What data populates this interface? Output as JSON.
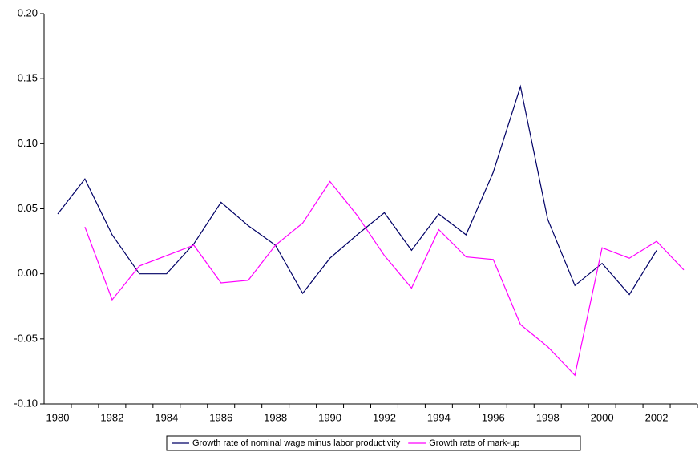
{
  "chart_data": {
    "type": "line",
    "categories": [
      "1980",
      null,
      "1982",
      null,
      "1984",
      null,
      "1986",
      null,
      "1988",
      null,
      "1990",
      null,
      "1992",
      null,
      "1994",
      null,
      "1996",
      null,
      "1998",
      null,
      "2000",
      null,
      "2002",
      null
    ],
    "series": [
      {
        "name": "Growth rate of nominal wage minus labor productivity",
        "color": "#000066",
        "values": [
          0.046,
          0.073,
          0.03,
          0.0,
          0.0,
          0.023,
          0.055,
          0.037,
          0.022,
          -0.015,
          0.012,
          0.03,
          0.047,
          0.018,
          0.046,
          0.03,
          0.078,
          0.144,
          0.042,
          -0.009,
          0.008,
          -0.016,
          0.018,
          null
        ]
      },
      {
        "name": "Growth rate of mark-up",
        "color": "#ff00ff",
        "values": [
          null,
          0.036,
          -0.02,
          0.006,
          0.014,
          0.022,
          -0.007,
          -0.005,
          0.022,
          0.039,
          0.071,
          0.045,
          0.014,
          -0.011,
          0.034,
          0.013,
          0.011,
          -0.039,
          -0.056,
          -0.078,
          0.02,
          0.012,
          0.025,
          0.003
        ]
      }
    ],
    "ylim": [
      -0.1,
      0.2
    ],
    "yticks": [
      {
        "value": -0.1,
        "label": "-0.10"
      },
      -0.05,
      {
        "value": 0,
        "label": "0.00"
      },
      0.05,
      {
        "value": 0.1,
        "label": "0.10"
      },
      0.15,
      {
        "value": 0.2,
        "label": "0.20"
      }
    ],
    "grid": false,
    "legend": "bottom"
  }
}
